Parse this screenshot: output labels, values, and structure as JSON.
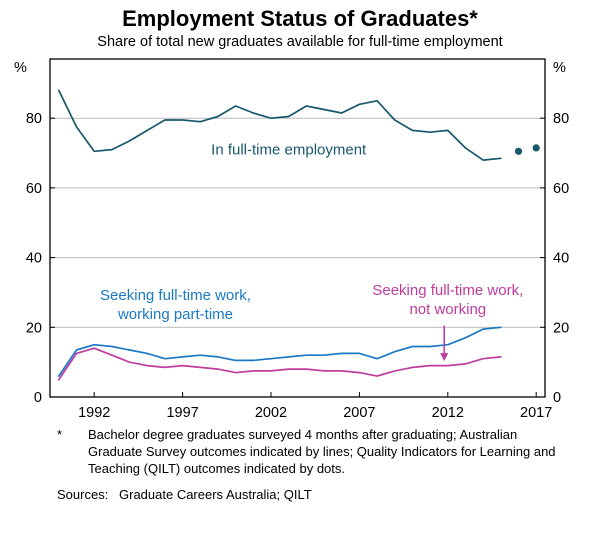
{
  "chart_data": {
    "type": "line",
    "title": "Employment Status of Graduates*",
    "subtitle": "Share of total new graduates available for full-time employment",
    "y_unit": "%",
    "ylim": [
      0,
      97
    ],
    "yticks": [
      0,
      20,
      40,
      60,
      80
    ],
    "xlim": [
      1989.5,
      2017.5
    ],
    "xticks": [
      1992,
      1997,
      2002,
      2007,
      2012,
      2017
    ],
    "grid": true,
    "legend_position": "none",
    "colors": {
      "grid": "#b9b9b9",
      "axis": "#000000"
    },
    "series": [
      {
        "id": "fulltime",
        "name": "In full-time employment",
        "style": "line",
        "color": "#17586b",
        "x": [
          1990,
          1991,
          1992,
          1993,
          1994,
          1995,
          1996,
          1997,
          1998,
          1999,
          2000,
          2001,
          2002,
          2003,
          2004,
          2005,
          2006,
          2007,
          2008,
          2009,
          2010,
          2011,
          2012,
          2013,
          2014,
          2015
        ],
        "y": [
          88,
          77.5,
          70.5,
          71,
          73.5,
          76.5,
          79.5,
          79.5,
          79,
          80.5,
          83.5,
          81.5,
          80,
          80.5,
          83.5,
          82.5,
          81.5,
          84,
          85,
          79.5,
          76.5,
          76,
          76.5,
          71.5,
          68,
          68.5
        ]
      },
      {
        "id": "parttime",
        "name": "Seeking full-time work, working part-time",
        "style": "line",
        "color": "#1b79c6",
        "x": [
          1990,
          1991,
          1992,
          1993,
          1994,
          1995,
          1996,
          1997,
          1998,
          1999,
          2000,
          2001,
          2002,
          2003,
          2004,
          2005,
          2006,
          2007,
          2008,
          2009,
          2010,
          2011,
          2012,
          2013,
          2014,
          2015
        ],
        "y": [
          6,
          13.5,
          15,
          14.5,
          13.5,
          12.5,
          11,
          11.5,
          12,
          11.5,
          10.5,
          10.5,
          11,
          11.5,
          12,
          12,
          12.5,
          12.5,
          11,
          13,
          14.5,
          14.5,
          15,
          17,
          19.5,
          20
        ]
      },
      {
        "id": "notworking",
        "name": "Seeking full-time work, not working",
        "style": "line",
        "color": "#bf3d9e",
        "x": [
          1990,
          1991,
          1992,
          1993,
          1994,
          1995,
          1996,
          1997,
          1998,
          1999,
          2000,
          2001,
          2002,
          2003,
          2004,
          2005,
          2006,
          2007,
          2008,
          2009,
          2010,
          2011,
          2012,
          2013,
          2014,
          2015
        ],
        "y": [
          5,
          12.5,
          14,
          12,
          10,
          9,
          8.5,
          9,
          8.5,
          8,
          7,
          7.5,
          7.5,
          8,
          8,
          7.5,
          7.5,
          7,
          6,
          7.5,
          8.5,
          9,
          9,
          9.5,
          11,
          11.5
        ]
      },
      {
        "id": "fulltime-qilt",
        "name": "In full-time employment (QILT dots)",
        "style": "dots",
        "color": "#17586b",
        "x": [
          2016,
          2017
        ],
        "y": [
          70.5,
          71.5
        ]
      }
    ],
    "annotations": [
      {
        "id": "fulltime",
        "text": "In full-time employment",
        "x": 2003,
        "y": 71,
        "color": "#17586b"
      },
      {
        "id": "parttime",
        "text": "Seeking full-time work,\nworking part-time",
        "x": 1996.6,
        "y": 26.5,
        "color": "#1b79c6"
      },
      {
        "id": "notworking",
        "text": "Seeking full-time work,\nnot working",
        "x": 2012,
        "y": 28,
        "color": "#bf3d9e",
        "arrow": {
          "x": 2011.8,
          "y1": 20.5,
          "y2": 10.3
        }
      }
    ]
  },
  "footnote": {
    "marker": "*",
    "text": "Bachelor degree graduates surveyed 4 months after graduating; Australian Graduate Survey outcomes indicated by lines; Quality Indicators for Learning and Teaching (QILT) outcomes indicated by dots."
  },
  "sources": {
    "label": "Sources:",
    "text": "Graduate Careers Australia; QILT"
  }
}
